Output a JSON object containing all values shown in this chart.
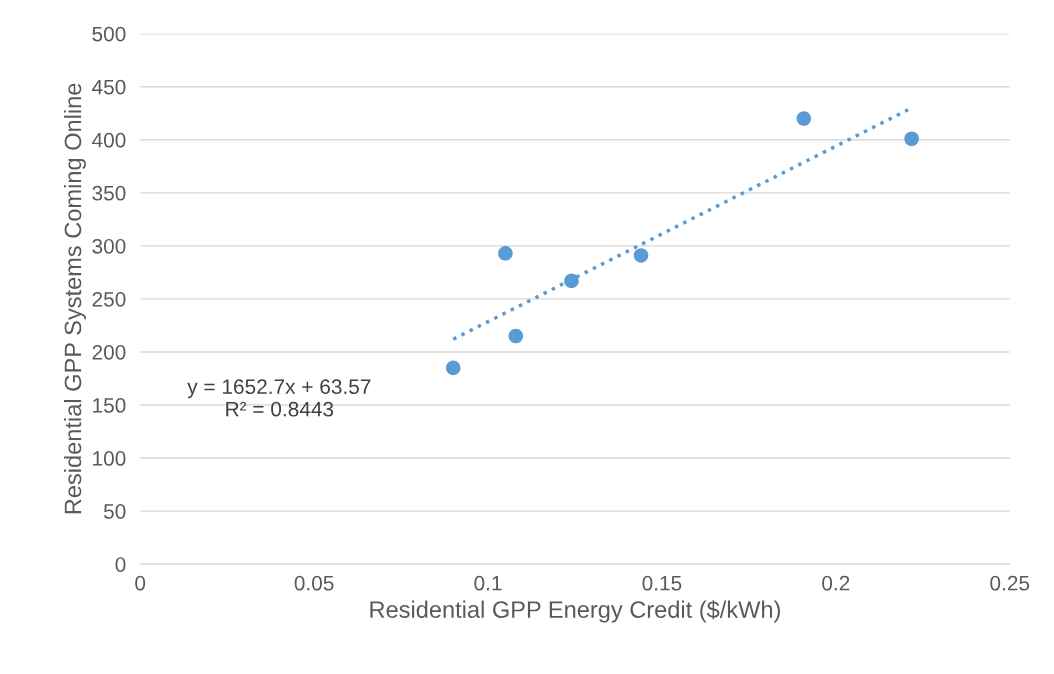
{
  "chart_data": {
    "type": "scatter",
    "xlabel": "Residential GPP Energy Credit ($/kWh)",
    "ylabel": "Residential GPP Systems Coming Online",
    "xlim": [
      0,
      0.25
    ],
    "xticks": [
      0,
      0.05,
      0.1,
      0.15,
      0.2,
      0.25
    ],
    "ylim": [
      0,
      500
    ],
    "yticks": [
      0,
      50,
      100,
      150,
      200,
      250,
      300,
      350,
      400,
      450,
      500
    ],
    "grid": "y",
    "series": [
      {
        "marker": "circle",
        "color": "#5b9bd5",
        "x": [
          0.09,
          0.105,
          0.108,
          0.124,
          0.144,
          0.1908,
          0.2218
        ],
        "values": [
          185,
          293,
          215,
          267,
          291,
          420,
          401
        ]
      },
      {
        "type": "line",
        "marker": "none",
        "color": "#5b9bd5",
        "line_style": "dotted",
        "x": [
          0.09,
          0.2218
        ],
        "values": [
          212,
          430
        ]
      }
    ],
    "annotations": [
      "y = 1652.7x + 63.57\nR² = 0.8443"
    ]
  }
}
